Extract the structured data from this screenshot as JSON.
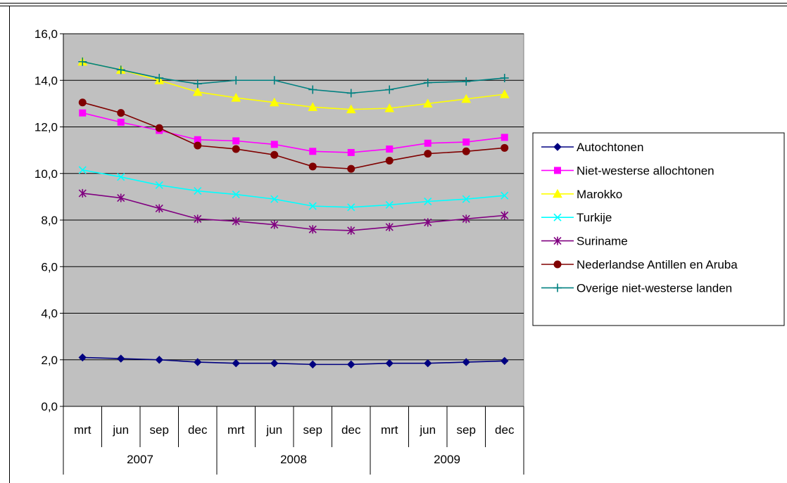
{
  "chart_data": {
    "type": "line",
    "categories": [
      "mrt",
      "jun",
      "sep",
      "dec",
      "mrt",
      "jun",
      "sep",
      "dec",
      "mrt",
      "jun",
      "sep",
      "dec"
    ],
    "category_groups": [
      {
        "label": "2007",
        "span": 4
      },
      {
        "label": "2008",
        "span": 4
      },
      {
        "label": "2009",
        "span": 4
      }
    ],
    "yticks": [
      "0,0",
      "2,0",
      "4,0",
      "6,0",
      "8,0",
      "10,0",
      "12,0",
      "14,0",
      "16,0"
    ],
    "ylim": [
      0,
      16
    ],
    "grid": true,
    "legend_position": "right",
    "plot_background": "#c0c0c0",
    "series": [
      {
        "name": "Autochtonen",
        "color": "#000080",
        "marker": "diamond",
        "values": [
          2.1,
          2.05,
          2.0,
          1.9,
          1.85,
          1.85,
          1.8,
          1.8,
          1.85,
          1.85,
          1.9,
          1.95
        ]
      },
      {
        "name": "Niet-westerse allochtonen",
        "color": "#ff00ff",
        "marker": "square",
        "values": [
          12.6,
          12.2,
          11.85,
          11.45,
          11.4,
          11.25,
          10.95,
          10.9,
          11.05,
          11.3,
          11.35,
          11.55
        ]
      },
      {
        "name": "Marokko",
        "color": "#ffff00",
        "marker": "triangle",
        "values": [
          14.8,
          14.45,
          14.0,
          13.5,
          13.25,
          13.05,
          12.85,
          12.75,
          12.8,
          13.0,
          13.2,
          13.4
        ]
      },
      {
        "name": "Turkije",
        "color": "#00ffff",
        "marker": "x",
        "values": [
          10.15,
          9.85,
          9.5,
          9.25,
          9.1,
          8.9,
          8.6,
          8.55,
          8.65,
          8.8,
          8.9,
          9.05
        ]
      },
      {
        "name": "Suriname",
        "color": "#800080",
        "marker": "asterisk",
        "values": [
          9.15,
          8.95,
          8.5,
          8.05,
          7.95,
          7.8,
          7.6,
          7.55,
          7.7,
          7.9,
          8.05,
          8.2
        ]
      },
      {
        "name": "Nederlandse Antillen en Aruba",
        "color": "#800000",
        "marker": "circle",
        "values": [
          13.05,
          12.6,
          11.95,
          11.2,
          11.05,
          10.8,
          10.3,
          10.2,
          10.55,
          10.85,
          10.95,
          11.1
        ]
      },
      {
        "name": "Overige niet-westerse landen",
        "color": "#008080",
        "marker": "plus",
        "values": [
          14.8,
          14.45,
          14.1,
          13.85,
          14.0,
          14.0,
          13.6,
          13.45,
          13.6,
          13.9,
          13.95,
          14.1
        ]
      }
    ]
  }
}
